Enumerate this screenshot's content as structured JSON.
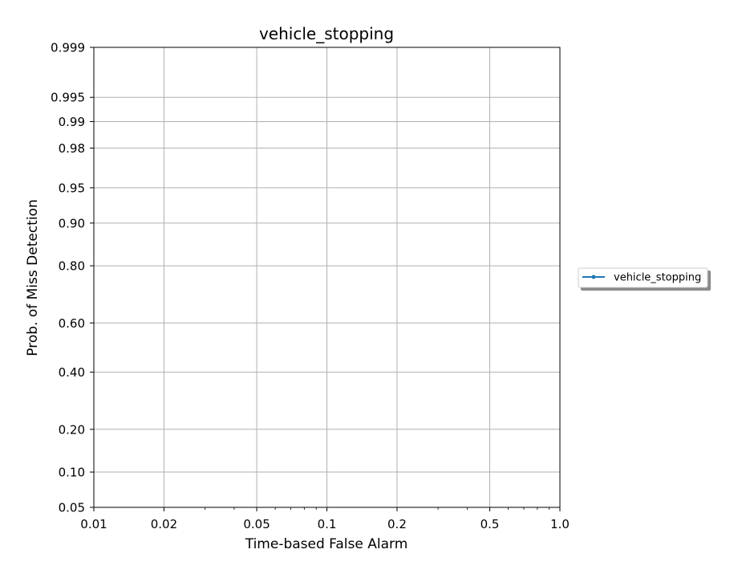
{
  "chart_data": {
    "type": "line",
    "title": "vehicle_stopping",
    "xlabel": "Time-based False Alarm",
    "ylabel": "Prob. of Miss Detection",
    "x_scale": "log",
    "y_scale": "normal-deviate",
    "xlim": [
      0.01,
      1.0
    ],
    "ylim": [
      0.05,
      0.999
    ],
    "x_ticks": [
      0.01,
      0.02,
      0.05,
      0.1,
      0.2,
      0.5,
      1.0
    ],
    "x_tick_labels": [
      "0.01",
      "0.02",
      "0.05",
      "0.1",
      "0.2",
      "0.5",
      "1.0"
    ],
    "y_ticks": [
      0.05,
      0.1,
      0.2,
      0.4,
      0.6,
      0.8,
      0.9,
      0.95,
      0.98,
      0.99,
      0.995,
      0.999
    ],
    "y_tick_labels": [
      "0.05",
      "0.10",
      "0.20",
      "0.40",
      "0.60",
      "0.80",
      "0.90",
      "0.95",
      "0.98",
      "0.99",
      "0.995",
      "0.999"
    ],
    "grid": true,
    "legend_position": "outside-right",
    "series": [
      {
        "name": "vehicle_stopping",
        "color": "#1f77b4",
        "marker": "dot",
        "x": [],
        "y": []
      }
    ]
  }
}
